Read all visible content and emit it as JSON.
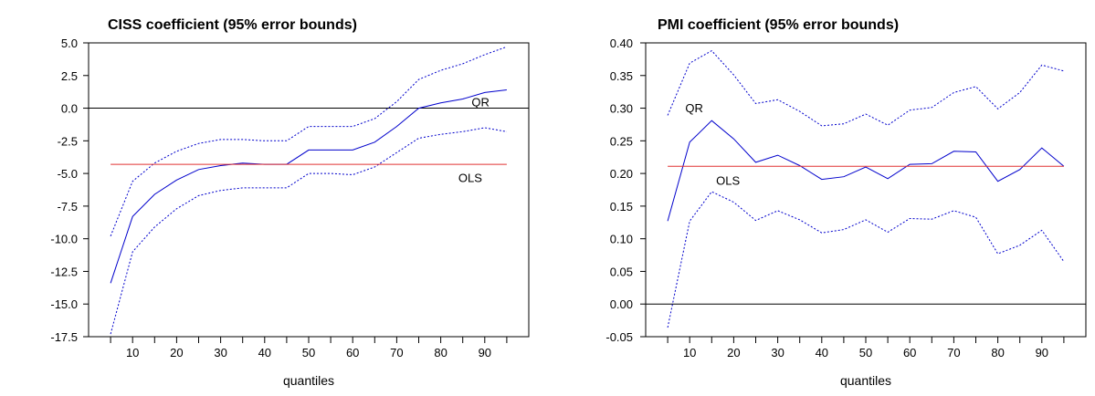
{
  "chart_data": [
    {
      "type": "line",
      "title": "CISS coefficient (95% error bounds)",
      "xlabel": "quantiles",
      "ylabel": "",
      "xlim": [
        0,
        100
      ],
      "ylim": [
        -17.5,
        5.0
      ],
      "xticks": [
        10,
        20,
        30,
        40,
        50,
        60,
        70,
        80,
        90
      ],
      "yticks": [
        5.0,
        2.5,
        0.0,
        -2.5,
        -5.0,
        -7.5,
        -10.0,
        -12.5,
        -15.0,
        -17.5
      ],
      "ytick_format": "0.0",
      "grid": false,
      "legend": "none",
      "x": [
        5,
        10,
        15,
        20,
        25,
        30,
        35,
        40,
        45,
        50,
        55,
        60,
        65,
        70,
        75,
        80,
        85,
        90,
        95
      ],
      "series": [
        {
          "role": "qr",
          "style": "solid",
          "color": "#0000cc",
          "values": [
            -13.4,
            -8.3,
            -6.6,
            -5.5,
            -4.7,
            -4.4,
            -4.2,
            -4.3,
            -4.3,
            -3.2,
            -3.2,
            -3.2,
            -2.6,
            -1.4,
            0.0,
            0.4,
            0.7,
            1.2,
            1.4
          ]
        },
        {
          "role": "qr_upper",
          "style": "dotted",
          "color": "#0000cc",
          "values": [
            -9.8,
            -5.6,
            -4.2,
            -3.3,
            -2.7,
            -2.4,
            -2.4,
            -2.5,
            -2.5,
            -1.4,
            -1.4,
            -1.4,
            -0.8,
            0.5,
            2.2,
            2.9,
            3.4,
            4.1,
            4.7
          ]
        },
        {
          "role": "qr_lower",
          "style": "dotted",
          "color": "#0000cc",
          "values": [
            -17.3,
            -11.0,
            -9.1,
            -7.7,
            -6.7,
            -6.3,
            -6.1,
            -6.1,
            -6.1,
            -5.0,
            -5.0,
            -5.1,
            -4.5,
            -3.4,
            -2.3,
            -2.0,
            -1.8,
            -1.5,
            -1.8
          ]
        },
        {
          "role": "ols",
          "style": "solid",
          "color": "#e03030",
          "values": [
            -4.3,
            -4.3,
            -4.3,
            -4.3,
            -4.3,
            -4.3,
            -4.3,
            -4.3,
            -4.3,
            -4.3,
            -4.3,
            -4.3,
            -4.3,
            -4.3,
            -4.3,
            -4.3,
            -4.3,
            -4.3,
            -4.3
          ]
        }
      ],
      "zero_line": 0.0,
      "annotations": [
        {
          "text": "QR",
          "x": 87,
          "y": 0.5
        },
        {
          "text": "OLS",
          "x": 84,
          "y": -5.3
        }
      ]
    },
    {
      "type": "line",
      "title": "PMI coefficient (95% error bounds)",
      "xlabel": "quantiles",
      "ylabel": "",
      "xlim": [
        0,
        100
      ],
      "ylim": [
        -0.05,
        0.4
      ],
      "xticks": [
        10,
        20,
        30,
        40,
        50,
        60,
        70,
        80,
        90
      ],
      "yticks": [
        0.4,
        0.35,
        0.3,
        0.25,
        0.2,
        0.15,
        0.1,
        0.05,
        0.0,
        -0.05
      ],
      "ytick_format": "0.00",
      "grid": false,
      "legend": "none",
      "x": [
        5,
        10,
        15,
        20,
        25,
        30,
        35,
        40,
        45,
        50,
        55,
        60,
        65,
        70,
        75,
        80,
        85,
        90,
        95
      ],
      "series": [
        {
          "role": "qr",
          "style": "solid",
          "color": "#0000cc",
          "values": [
            0.127,
            0.248,
            0.281,
            0.253,
            0.217,
            0.228,
            0.212,
            0.191,
            0.195,
            0.21,
            0.192,
            0.214,
            0.215,
            0.234,
            0.233,
            0.188,
            0.206,
            0.239,
            0.211
          ]
        },
        {
          "role": "qr_upper",
          "style": "dotted",
          "color": "#0000cc",
          "values": [
            0.289,
            0.369,
            0.388,
            0.351,
            0.307,
            0.313,
            0.295,
            0.273,
            0.276,
            0.291,
            0.274,
            0.297,
            0.301,
            0.324,
            0.333,
            0.299,
            0.324,
            0.366,
            0.357
          ]
        },
        {
          "role": "qr_lower",
          "style": "dotted",
          "color": "#0000cc",
          "values": [
            -0.036,
            0.127,
            0.172,
            0.156,
            0.128,
            0.143,
            0.129,
            0.109,
            0.114,
            0.129,
            0.11,
            0.131,
            0.13,
            0.143,
            0.133,
            0.077,
            0.09,
            0.113,
            0.065
          ]
        },
        {
          "role": "ols",
          "style": "solid",
          "color": "#e03030",
          "values": [
            0.211,
            0.211,
            0.211,
            0.211,
            0.211,
            0.211,
            0.211,
            0.211,
            0.211,
            0.211,
            0.211,
            0.211,
            0.211,
            0.211,
            0.211,
            0.211,
            0.211,
            0.211,
            0.211
          ]
        }
      ],
      "zero_line": 0.0,
      "annotations": [
        {
          "text": "QR",
          "x": 9,
          "y": 0.301
        },
        {
          "text": "OLS",
          "x": 16,
          "y": 0.19
        }
      ]
    }
  ]
}
